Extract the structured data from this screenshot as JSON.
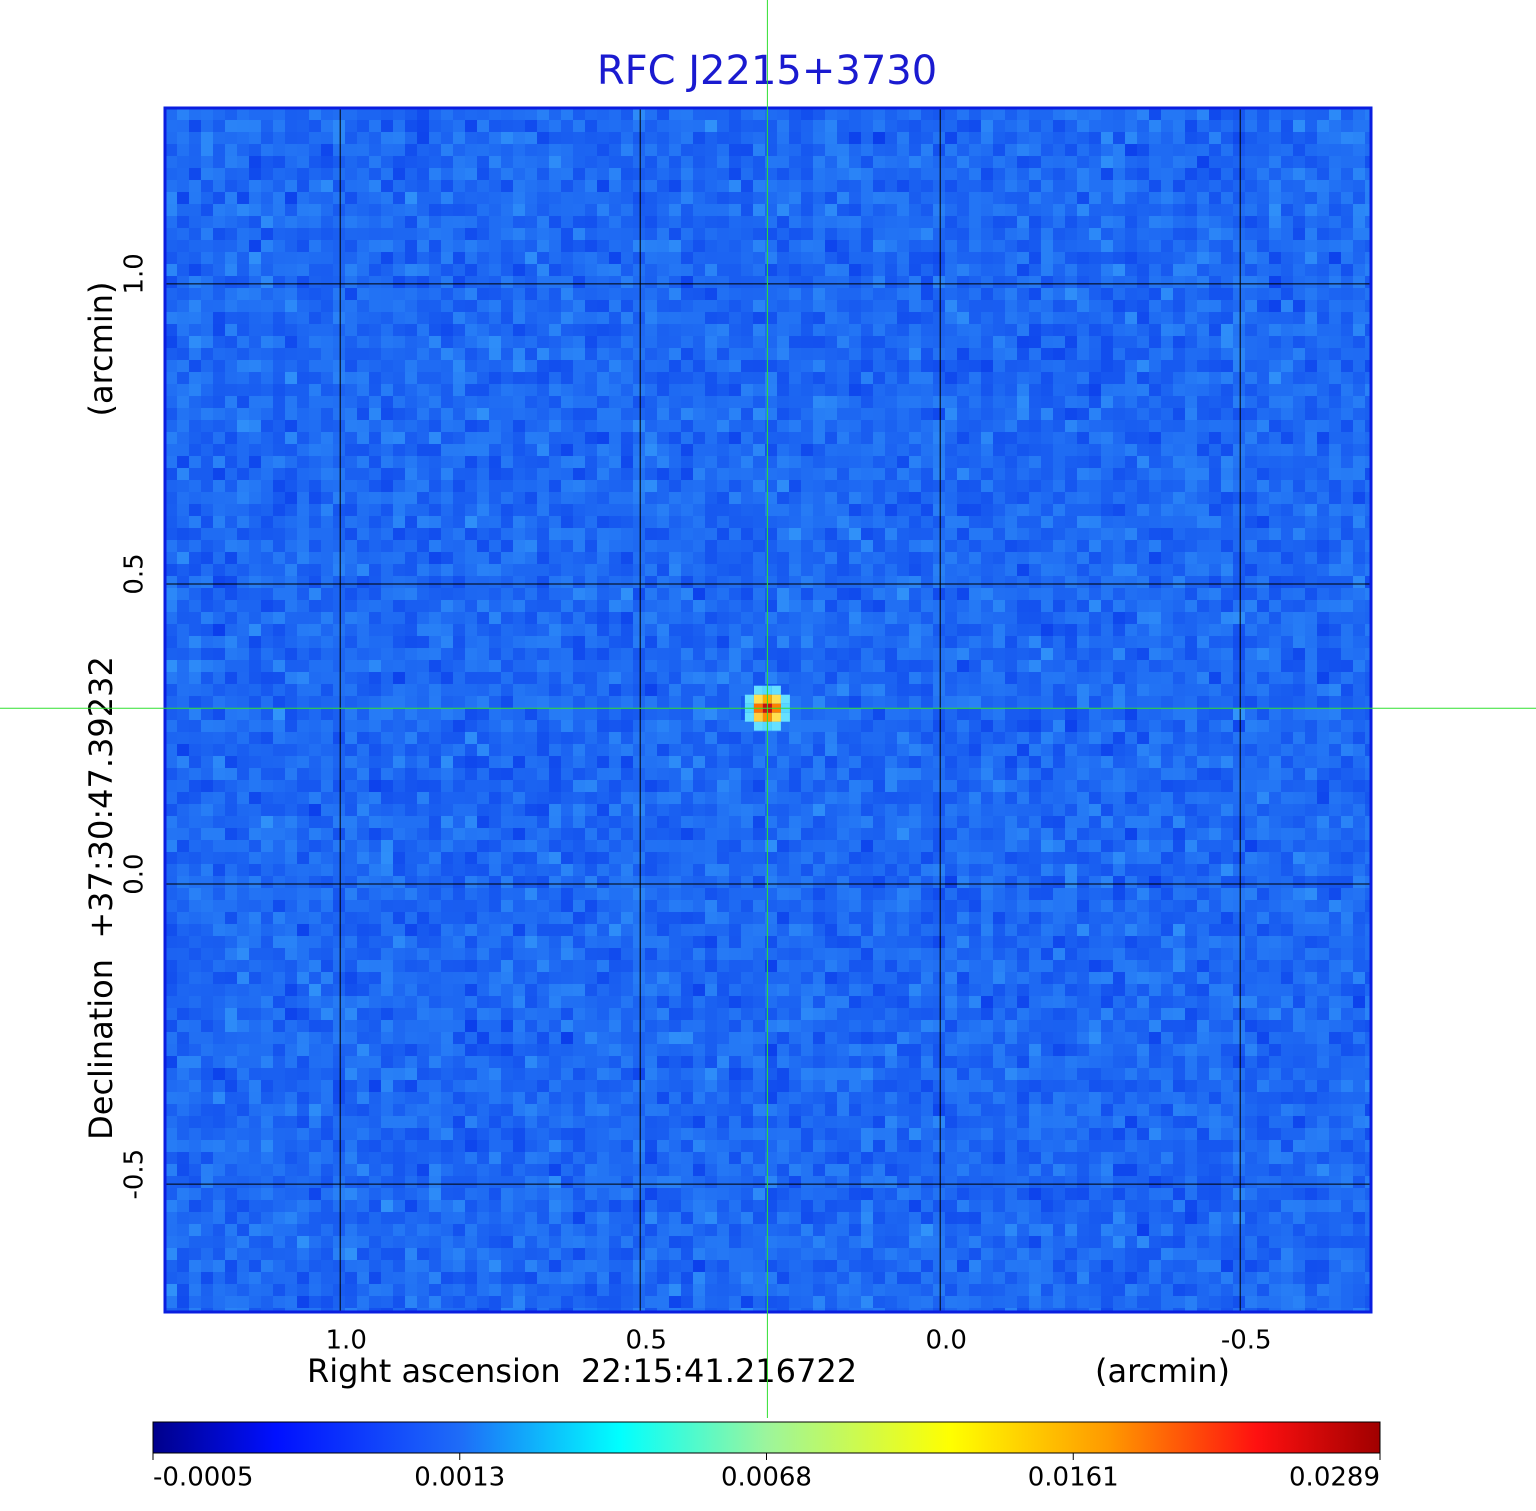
{
  "chart_data": {
    "type": "image",
    "title": "RFC J2215+3730",
    "x_label": "Right ascension  22:15:41.216722",
    "x_unit": "(arcmin)",
    "y_label": "Declination  +37:30:47.39232",
    "y_unit": "(arcmin)",
    "xlim": [
      1.292,
      -0.718
    ],
    "ylim": [
      -0.713,
      1.293
    ],
    "xticks": [
      {
        "value": 1,
        "label": "1.0"
      },
      {
        "value": 0.5,
        "label": "0.5"
      },
      {
        "value": 0,
        "label": "0.0"
      },
      {
        "value": -0.5,
        "label": "-0.5"
      }
    ],
    "yticks": [
      {
        "value": 1,
        "label": "1.0"
      },
      {
        "value": 0.5,
        "label": "0.5"
      },
      {
        "value": 0,
        "label": "0.0"
      },
      {
        "value": -0.5,
        "label": "-0.5"
      }
    ],
    "grid": true,
    "crosshair": {
      "x": 0.288,
      "y": 0.293
    },
    "colorbar_ticks": [
      -0.0005,
      0.0013,
      0.0068,
      0.0161,
      0.0289
    ]
  }
}
